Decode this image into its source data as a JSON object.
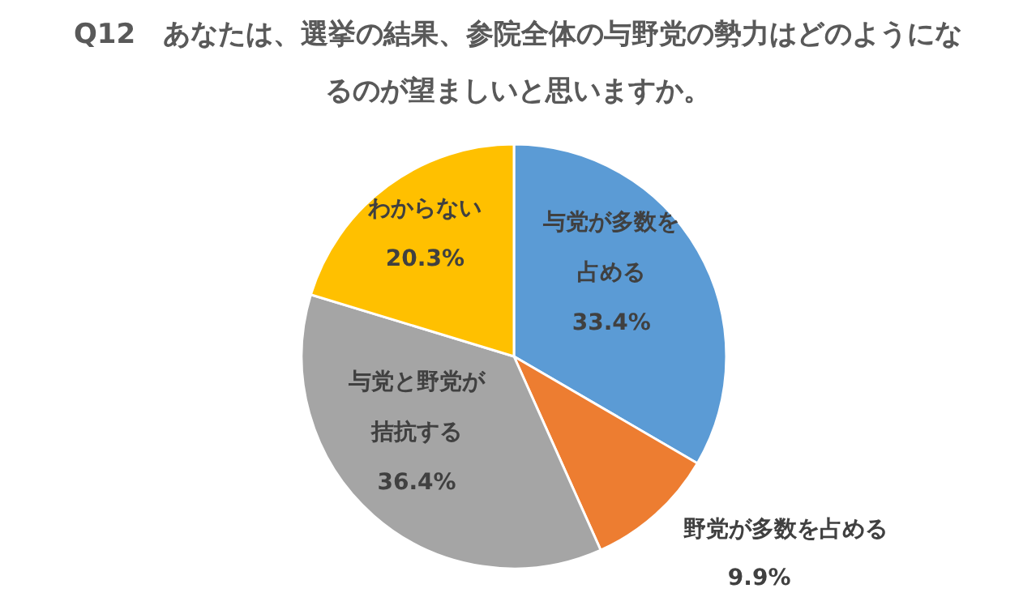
{
  "chart_data": {
    "type": "pie",
    "title": "Q12　あなたは、選挙の結果、参院全体の与野党の勢力はどのようになるのが望ましいと思いますか。",
    "categories": [
      "与党が多数を占める",
      "野党が多数を占める",
      "与党と野党が拮抗する",
      "わからない"
    ],
    "values": [
      33.4,
      9.9,
      36.4,
      20.3
    ],
    "colors": [
      "#5b9bd5",
      "#ed7d31",
      "#a5a5a5",
      "#ffc000"
    ],
    "value_labels": [
      "33.4%",
      "9.9%",
      "36.4%",
      "20.3%"
    ]
  }
}
